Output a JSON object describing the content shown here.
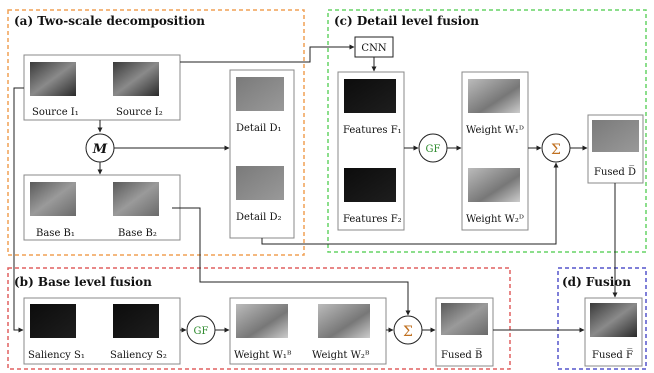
{
  "sections": {
    "a": "(a) Two-scale decomposition",
    "b": "(b) Base level fusion",
    "c": "(c) Detail level fusion",
    "d": "(d) Fusion"
  },
  "operators": {
    "cnn": "CNN",
    "m": "M",
    "gf1": "GF",
    "gf2": "GF",
    "sum1": "Σ",
    "sum2": "Σ"
  },
  "labels": {
    "source1": "Source I₁",
    "source2": "Source I₂",
    "base1": "Base B₁",
    "base2": "Base B₂",
    "detail1": "Detail D₁",
    "detail2": "Detail D₂",
    "features1": "Features F₁",
    "features2": "Features F₂",
    "weightD1": "Weight W₁ᴰ",
    "weightD2": "Weight W₂ᴰ",
    "fusedD": "Fused D̅",
    "saliency1": "Saliency S₁",
    "saliency2": "Saliency S₂",
    "weightB1": "Weight W₁ᴮ",
    "weightB2": "Weight W₂ᴮ",
    "fusedB": "Fused B̅",
    "fusedF": "Fused F̅"
  },
  "colors": {
    "a": "#f0a055",
    "b": "#e06060",
    "c": "#66d466",
    "d": "#5555cc",
    "gf": "#2e8b2e",
    "sum": "#c07020",
    "line": "#222222",
    "box": "#888888"
  }
}
